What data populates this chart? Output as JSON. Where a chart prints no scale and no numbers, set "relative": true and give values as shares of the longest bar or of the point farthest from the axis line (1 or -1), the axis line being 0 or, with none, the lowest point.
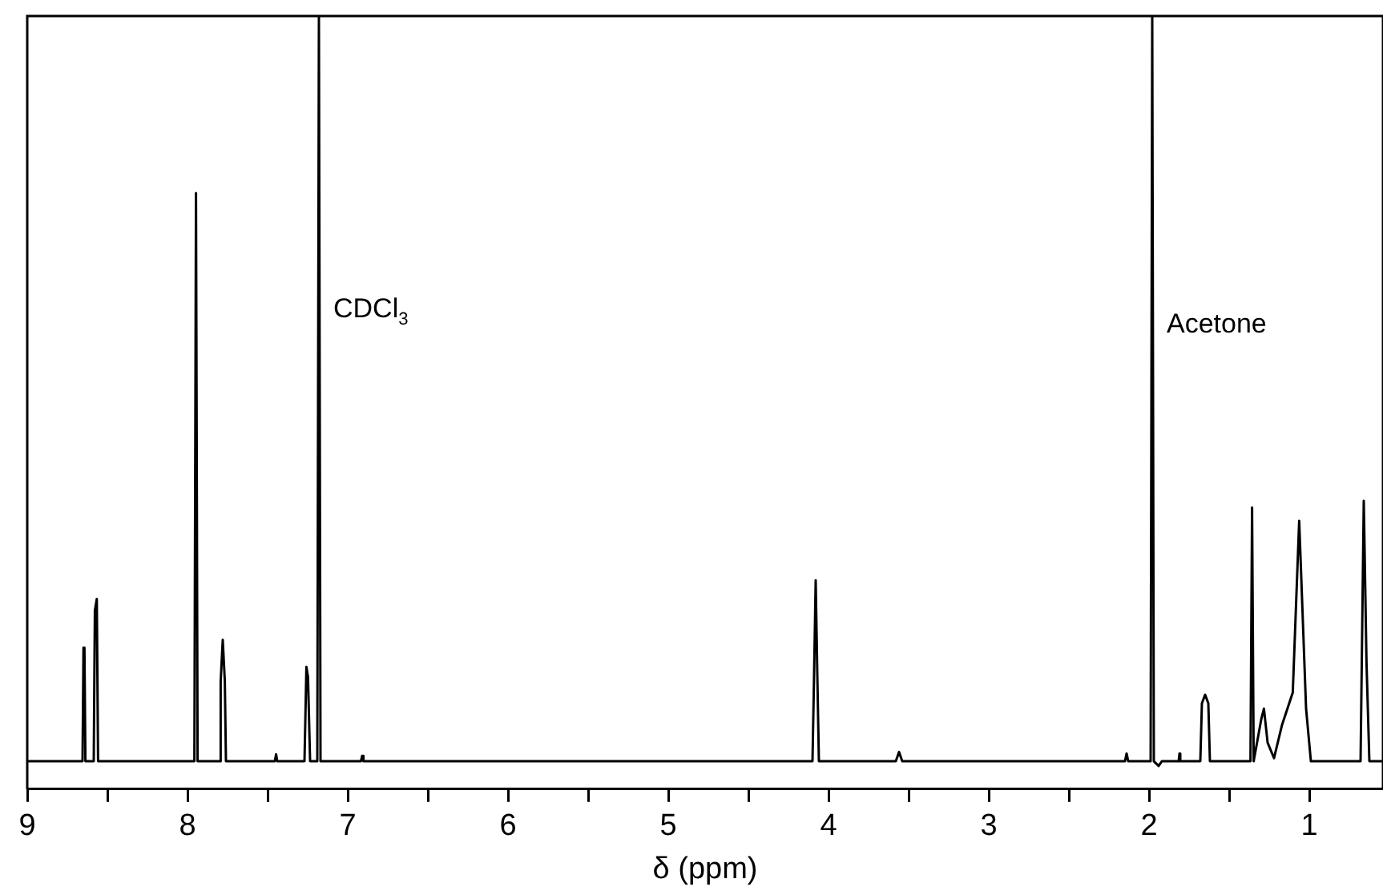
{
  "chart_data": {
    "type": "line",
    "relative": true,
    "xlabel": "δ (ppm)",
    "xlim": [
      9,
      0.54
    ],
    "xticks": [
      9,
      {
        "value": 8.5,
        "label": null
      },
      8,
      {
        "value": 7.5,
        "label": null
      },
      7,
      {
        "value": 6.5,
        "label": null
      },
      6,
      {
        "value": 5.5,
        "label": null
      },
      5,
      {
        "value": 4.5,
        "label": null
      },
      4,
      {
        "value": 3.5,
        "label": null
      },
      3,
      {
        "value": 2.5,
        "label": null
      },
      2,
      {
        "value": 1.5,
        "label": null
      },
      1
    ],
    "tick_labels": "x",
    "grid": false,
    "legend": false,
    "marker": "none",
    "line_style": "solid",
    "annotations": [
      {
        "text": "CDCl$_{3}$",
        "x": 7.18,
        "y": 0.62
      },
      {
        "text": "Acetone",
        "x": 1.98,
        "y": 0.6
      }
    ],
    "series": [
      {
        "color": "#000000",
        "x": [
          9.0,
          8.67,
          8.655,
          8.649,
          8.643,
          8.637,
          8.585,
          8.578,
          8.566,
          8.558,
          7.957,
          7.947,
          7.937,
          7.8,
          7.793,
          7.78,
          7.767,
          7.76,
          7.455,
          7.447,
          7.44,
          7.27,
          7.258,
          7.248,
          7.235,
          7.19,
          7.18,
          7.17,
          6.918,
          6.91,
          6.902,
          4.1,
          4.09,
          4.08,
          4.07,
          4.06,
          3.58,
          3.56,
          3.54,
          2.15,
          2.14,
          2.13,
          1.99,
          1.98,
          1.97,
          1.94,
          1.92,
          1.815,
          1.81,
          1.805,
          1.68,
          1.67,
          1.65,
          1.63,
          1.62,
          1.367,
          1.357,
          1.347,
          1.3,
          1.283,
          1.26,
          1.22,
          1.17,
          1.103,
          1.063,
          1.02,
          0.99,
          0.68,
          0.66,
          0.643,
          0.625,
          0.54
        ],
        "values": [
          0.036,
          0.036,
          0.036,
          0.183,
          0.18,
          0.036,
          0.036,
          0.231,
          0.246,
          0.036,
          0.036,
          0.771,
          0.036,
          0.036,
          0.139,
          0.193,
          0.139,
          0.036,
          0.036,
          0.045,
          0.036,
          0.036,
          0.158,
          0.145,
          0.036,
          0.036,
          1,
          0.036,
          0.036,
          0.043,
          0.036,
          0.036,
          0.149,
          0.27,
          0.149,
          0.036,
          0.036,
          0.048,
          0.036,
          0.036,
          0.046,
          0.036,
          0.036,
          1,
          0.036,
          0.03,
          0.036,
          0.036,
          0.046,
          0.036,
          0.036,
          0.111,
          0.122,
          0.111,
          0.036,
          0.036,
          0.364,
          0.036,
          0.09,
          0.104,
          0.06,
          0.04,
          0.083,
          0.125,
          0.347,
          0.104,
          0.036,
          0.036,
          0.373,
          0.164,
          0.036,
          0.036
        ]
      }
    ]
  }
}
